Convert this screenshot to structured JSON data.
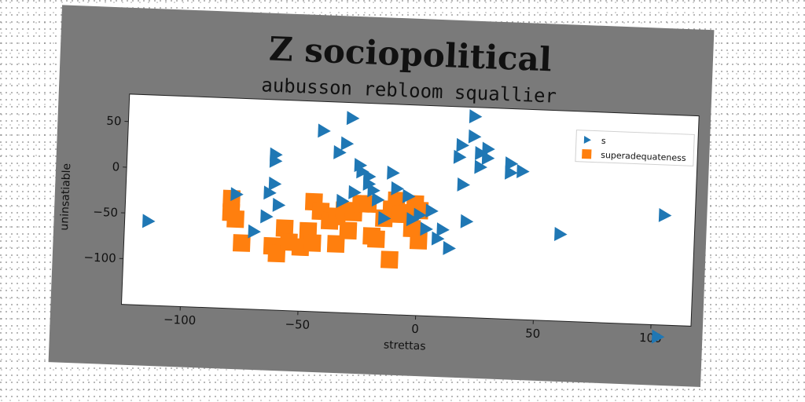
{
  "chart_data": {
    "type": "scatter",
    "title": "Z sociopolitical",
    "subtitle": "aubusson rebloom squallier",
    "xlabel": "strettas",
    "ylabel": "uninsatiable",
    "xlim": [
      -125,
      117
    ],
    "ylim": [
      -150,
      80
    ],
    "xticks": [
      -100,
      -50,
      0,
      50,
      100
    ],
    "xtick_labels": [
      "−100",
      "−50",
      "0",
      "50",
      "100"
    ],
    "yticks": [
      50,
      0,
      -50,
      -100
    ],
    "ytick_labels": [
      "50",
      "0",
      "−50",
      "−100"
    ],
    "grid": false,
    "legend_position": "top-right",
    "series": [
      {
        "name": "s",
        "marker": "triangle-right",
        "color": "#1f77b4",
        "points": [
          [
            -115,
            -58
          ],
          [
            -78,
            -25
          ],
          [
            -70,
            -65
          ],
          [
            -65,
            -48
          ],
          [
            -64,
            -22
          ],
          [
            -62,
            20
          ],
          [
            -62,
            13
          ],
          [
            -62,
            -12
          ],
          [
            -60,
            -35
          ],
          [
            -42,
            48
          ],
          [
            -35,
            25
          ],
          [
            -33,
            -28
          ],
          [
            -32,
            35
          ],
          [
            -30,
            63
          ],
          [
            -28,
            -18
          ],
          [
            -26,
            12
          ],
          [
            -25,
            5
          ],
          [
            -22,
            0
          ],
          [
            -22,
            -8
          ],
          [
            -20,
            -15
          ],
          [
            -18,
            -25
          ],
          [
            -15,
            -45
          ],
          [
            -12,
            5
          ],
          [
            -10,
            -12
          ],
          [
            -5,
            -20
          ],
          [
            -3,
            -45
          ],
          [
            0,
            -40
          ],
          [
            3,
            -55
          ],
          [
            5,
            -35
          ],
          [
            8,
            -65
          ],
          [
            10,
            -55
          ],
          [
            13,
            -75
          ],
          [
            16,
            25
          ],
          [
            17,
            38
          ],
          [
            18,
            -5
          ],
          [
            20,
            -45
          ],
          [
            22,
            70
          ],
          [
            22,
            48
          ],
          [
            25,
            30
          ],
          [
            25,
            15
          ],
          [
            28,
            35
          ],
          [
            28,
            25
          ],
          [
            38,
            20
          ],
          [
            38,
            10
          ],
          [
            43,
            12
          ],
          [
            60,
            -55
          ],
          [
            104,
            -30
          ],
          [
            103,
            -163
          ]
        ]
      },
      {
        "name": "superadequateness",
        "marker": "square",
        "color": "#ff7f0e",
        "points": [
          [
            -80,
            -30
          ],
          [
            -80,
            -45
          ],
          [
            -78,
            -52
          ],
          [
            -75,
            -78
          ],
          [
            -62,
            -80
          ],
          [
            -60,
            -88
          ],
          [
            -57,
            -60
          ],
          [
            -55,
            -75
          ],
          [
            -50,
            -80
          ],
          [
            -47,
            -62
          ],
          [
            -45,
            -30
          ],
          [
            -45,
            -75
          ],
          [
            -42,
            -40
          ],
          [
            -38,
            -50
          ],
          [
            -35,
            -75
          ],
          [
            -35,
            -45
          ],
          [
            -32,
            -38
          ],
          [
            -30,
            -60
          ],
          [
            -28,
            -40
          ],
          [
            -25,
            -30
          ],
          [
            -22,
            -30
          ],
          [
            -20,
            -65
          ],
          [
            -18,
            -68
          ],
          [
            -15,
            -45
          ],
          [
            -12,
            -35
          ],
          [
            -12,
            -90
          ],
          [
            -10,
            -25
          ],
          [
            -8,
            -40
          ],
          [
            -5,
            -38
          ],
          [
            -3,
            -55
          ],
          [
            0,
            -35
          ],
          [
            0,
            -68
          ],
          [
            -2,
            -28
          ]
        ]
      }
    ]
  }
}
